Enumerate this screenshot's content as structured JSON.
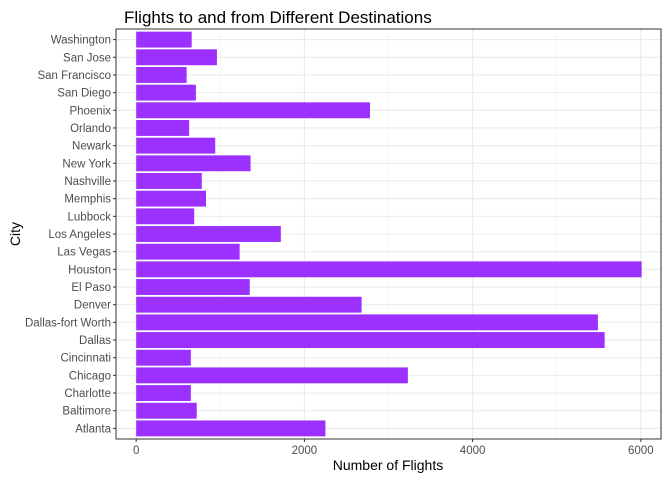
{
  "chart_data": {
    "type": "bar",
    "orientation": "horizontal",
    "title": "Flights to and from Different Destinations",
    "xlabel": "Number of Flights",
    "ylabel": "City",
    "xlim": [
      -240,
      6240
    ],
    "x_ticks": [
      0,
      2000,
      4000,
      6000
    ],
    "x_tick_labels": [
      "0",
      "2000",
      "4000",
      "6000"
    ],
    "bar_color": "#9b30ff",
    "categories": [
      "Washington",
      "San Jose",
      "San Francisco",
      "San Diego",
      "Phoenix",
      "Orlando",
      "Newark",
      "New York",
      "Nashville",
      "Memphis",
      "Lubbock",
      "Los Angeles",
      "Las Vegas",
      "Houston",
      "El Paso",
      "Denver",
      "Dallas-fort Worth",
      "Dallas",
      "Cincinnati",
      "Chicago",
      "Charlotte",
      "Baltimore",
      "Atlanta"
    ],
    "values": [
      660,
      960,
      600,
      710,
      2780,
      630,
      940,
      1360,
      780,
      830,
      690,
      1720,
      1230,
      6010,
      1350,
      2680,
      5490,
      5570,
      650,
      3230,
      650,
      720,
      2250
    ],
    "grid": true,
    "legend": "none"
  }
}
